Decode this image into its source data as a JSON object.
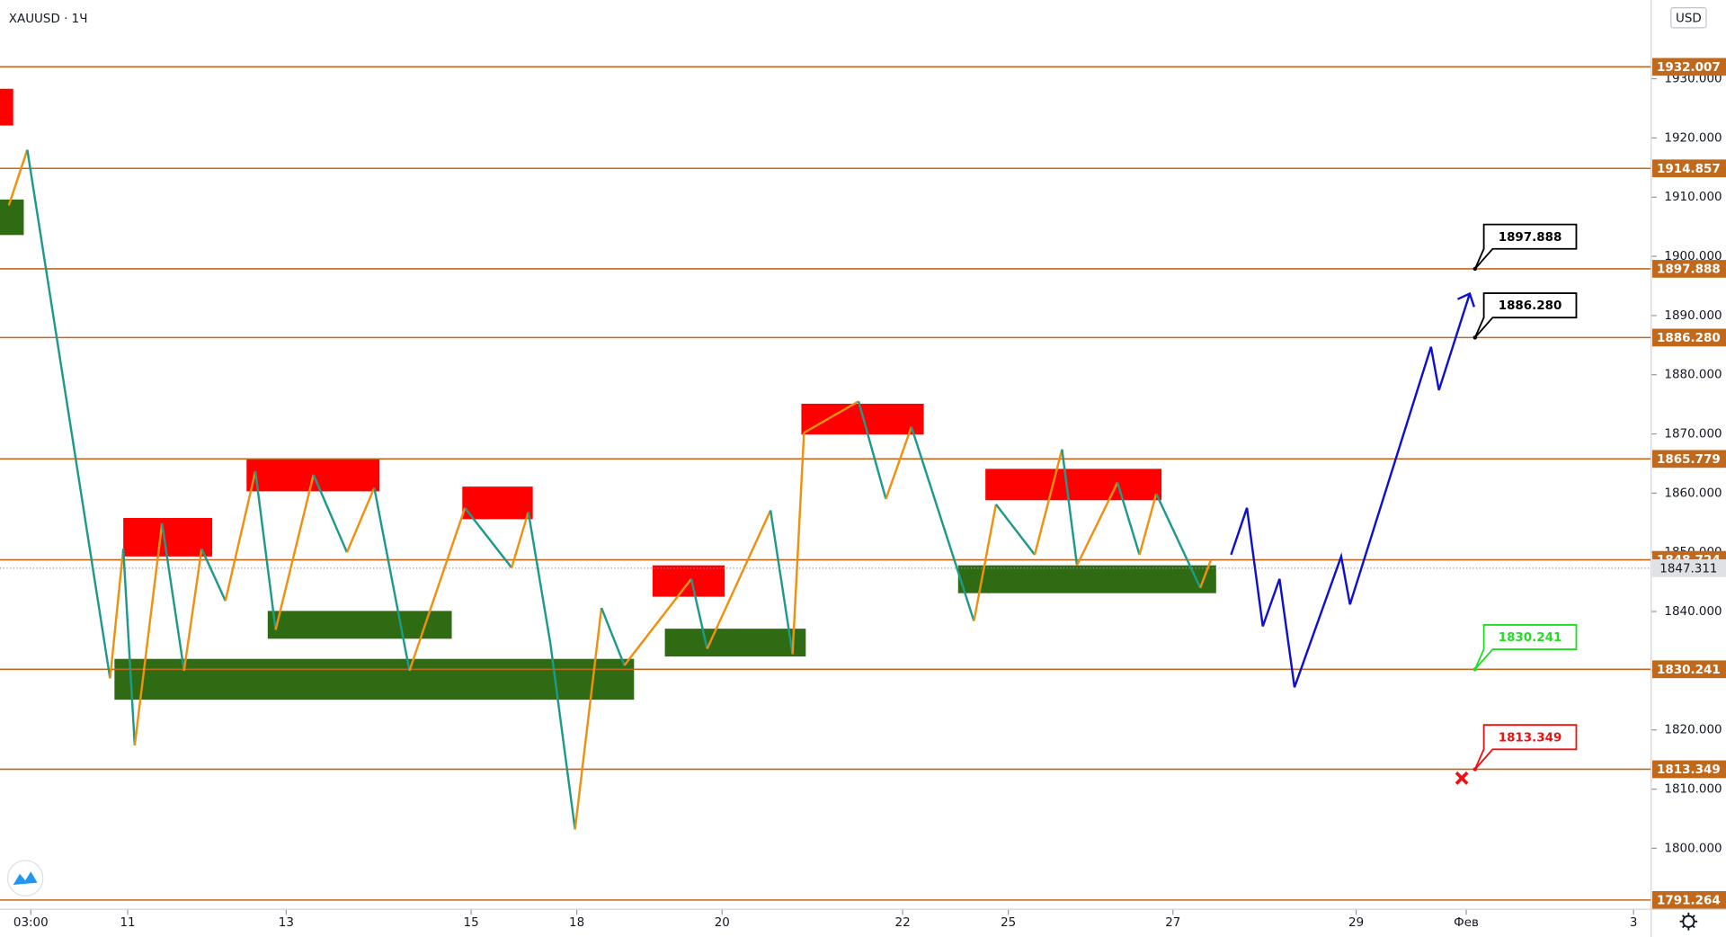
{
  "chart_data": {
    "type": "zigzag",
    "title": "XAUUSD · 1Ч",
    "currency": "USD",
    "xlim": [
      -0.35,
      18.4
    ],
    "xticks": [
      {
        "value": 0,
        "label": "03:00"
      },
      {
        "value": 1.1,
        "label": "11"
      },
      {
        "value": 2.9,
        "label": "13"
      },
      {
        "value": 5,
        "label": "15"
      },
      {
        "value": 6.2,
        "label": "18"
      },
      {
        "value": 7.85,
        "label": "20"
      },
      {
        "value": 9.9,
        "label": "22"
      },
      {
        "value": 11.1,
        "label": "25"
      },
      {
        "value": 12.97,
        "label": "27"
      },
      {
        "value": 15.05,
        "label": "29"
      },
      {
        "value": 16.3,
        "label": "Фев"
      },
      {
        "value": 18.2,
        "label": "3"
      }
    ],
    "ylim": [
      1789.7,
      1943.3
    ],
    "yticks": [
      {
        "value": 1800,
        "label": "1800.000"
      },
      {
        "value": 1810,
        "label": "1810.000"
      },
      {
        "value": 1820,
        "label": "1820.000"
      },
      {
        "value": 1830,
        "label": "1830.000"
      },
      {
        "value": 1840,
        "label": "1840.000"
      },
      {
        "value": 1850,
        "label": "1850.000"
      },
      {
        "value": 1860,
        "label": "1860.000"
      },
      {
        "value": 1870,
        "label": "1870.000"
      },
      {
        "value": 1880,
        "label": "1880.000"
      },
      {
        "value": 1890,
        "label": "1890.000"
      },
      {
        "value": 1900,
        "label": "1900.000"
      },
      {
        "value": 1910,
        "label": "1910.000"
      },
      {
        "value": 1920,
        "label": "1920.000"
      },
      {
        "value": 1930,
        "label": "1930.000"
      }
    ],
    "levels": [
      {
        "value": 1932.007,
        "label": "1932.007"
      },
      {
        "value": 1914.857,
        "label": "1914.857"
      },
      {
        "value": 1897.888,
        "label": "1897.888"
      },
      {
        "value": 1886.28,
        "label": "1886.280"
      },
      {
        "value": 1865.779,
        "label": "1865.779"
      },
      {
        "value": 1848.724,
        "label": "1848.724"
      },
      {
        "value": 1830.241,
        "label": "1830.241"
      },
      {
        "value": 1813.349,
        "label": "1813.349"
      },
      {
        "value": 1791.264,
        "label": "1791.264"
      }
    ],
    "level_color": "#c0691c",
    "current_price": {
      "value": 1847.311,
      "label": "1847.311"
    },
    "zones": [
      {
        "kind": "supply",
        "x": [
          -0.35,
          -0.2
        ],
        "price": [
          1928.3,
          1922.1
        ]
      },
      {
        "kind": "demand",
        "x": [
          -0.35,
          -0.08
        ],
        "price": [
          1909.6,
          1903.6
        ]
      },
      {
        "kind": "supply",
        "x": [
          1.05,
          2.06
        ],
        "price": [
          1855.8,
          1849.3
        ]
      },
      {
        "kind": "demand",
        "x": [
          0.95,
          6.85
        ],
        "price": [
          1832.0,
          1825.1
        ]
      },
      {
        "kind": "supply",
        "x": [
          2.45,
          3.96
        ],
        "price": [
          1865.9,
          1860.3
        ]
      },
      {
        "kind": "demand",
        "x": [
          2.69,
          4.78
        ],
        "price": [
          1840.1,
          1835.4
        ]
      },
      {
        "kind": "supply",
        "x": [
          4.9,
          5.7
        ],
        "price": [
          1861.1,
          1855.6
        ]
      },
      {
        "kind": "supply",
        "x": [
          7.06,
          7.88
        ],
        "price": [
          1847.8,
          1842.5
        ]
      },
      {
        "kind": "demand",
        "x": [
          7.2,
          8.8
        ],
        "price": [
          1837.1,
          1832.4
        ]
      },
      {
        "kind": "supply",
        "x": [
          8.75,
          10.14
        ],
        "price": [
          1875.1,
          1869.9
        ]
      },
      {
        "kind": "supply",
        "x": [
          10.84,
          12.84
        ],
        "price": [
          1864.1,
          1858.8
        ]
      },
      {
        "kind": "demand",
        "x": [
          10.53,
          13.46
        ],
        "price": [
          1847.8,
          1843.1
        ]
      }
    ],
    "zone_colors": {
      "supply": "#ff0000",
      "demand": "#2e6b12"
    },
    "series": [
      {
        "name": "zigzag",
        "color_up": "#f0900f",
        "color_down": "#1e9a8a",
        "x": [
          -0.25,
          -0.04,
          0.9,
          1.05,
          1.18,
          1.49,
          1.74,
          1.94,
          2.21,
          2.55,
          2.78,
          3.21,
          3.59,
          3.9,
          4.3,
          4.93,
          5.46,
          5.65,
          5.9,
          6.18,
          6.48,
          6.74,
          7.5,
          7.68,
          8.4,
          8.65,
          8.78,
          9.4,
          9.71,
          10.0,
          10.71,
          10.96,
          11.4,
          11.71,
          11.88,
          12.34,
          12.59,
          12.78,
          13.28,
          13.4
        ],
        "values": [
          1908.6,
          1918.0,
          1828.7,
          1850.6,
          1817.4,
          1854.9,
          1830.0,
          1850.6,
          1841.8,
          1863.7,
          1836.9,
          1863.1,
          1850.0,
          1860.9,
          1830.0,
          1857.5,
          1847.4,
          1856.8,
          1834.6,
          1803.2,
          1840.6,
          1830.9,
          1845.5,
          1833.7,
          1857.1,
          1832.8,
          1870.2,
          1875.5,
          1859.0,
          1871.2,
          1838.4,
          1858.1,
          1849.6,
          1867.4,
          1847.8,
          1861.8,
          1849.6,
          1859.9,
          1844.0,
          1848.7
        ]
      },
      {
        "name": "forecast",
        "color": "#1010d0",
        "x": [
          13.63,
          13.81,
          13.99,
          14.18,
          14.35,
          14.88,
          14.98,
          15.9,
          15.99,
          16.34
        ],
        "values": [
          1849.6,
          1857.5,
          1837.5,
          1845.5,
          1827.2,
          1849.3,
          1841.2,
          1884.7,
          1877.4,
          1893.7
        ]
      }
    ],
    "callouts": [
      {
        "x": 16.4,
        "value": 1897.888,
        "label": "1897.888",
        "color": "#000000"
      },
      {
        "x": 16.4,
        "value": 1886.28,
        "label": "1886.280",
        "color": "#000000"
      },
      {
        "x": 16.4,
        "value": 1830.241,
        "label": "1830.241",
        "color": "#22dd22"
      },
      {
        "x": 16.4,
        "value": 1813.349,
        "label": "1813.349",
        "color": "#ee1111"
      }
    ]
  }
}
